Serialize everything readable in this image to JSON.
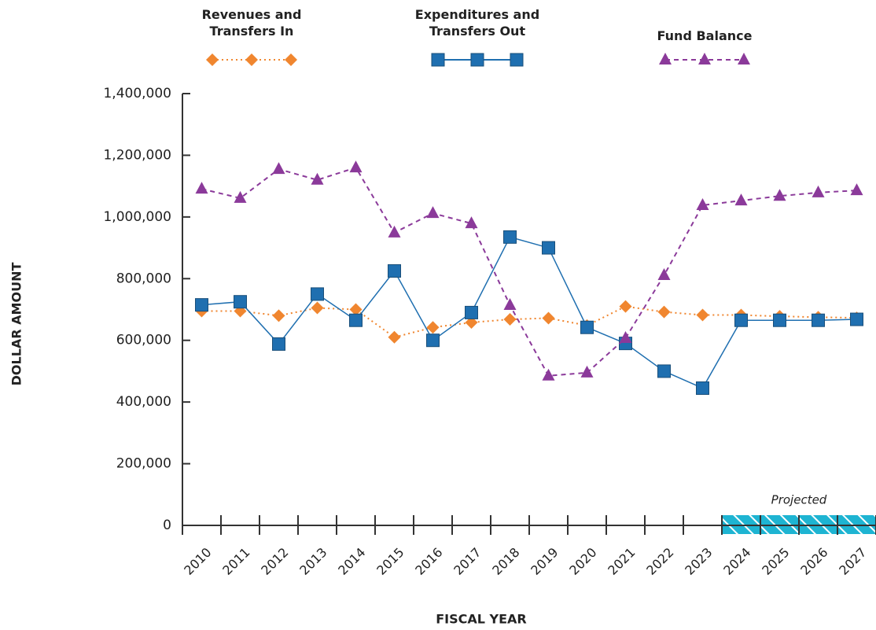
{
  "chart_data": {
    "type": "line",
    "x_label": "FISCAL YEAR",
    "y_label": "DOLLAR AMOUNT",
    "categories": [
      "2010",
      "2011",
      "2012",
      "2013",
      "2014",
      "2015",
      "2016",
      "2017",
      "2018",
      "2019",
      "2020",
      "2021",
      "2022",
      "2023",
      "2024",
      "2025",
      "2026",
      "2027"
    ],
    "series": [
      {
        "name": "Revenues and Transfers In",
        "color": "#f0862f",
        "marker": "diamond",
        "line": "dotted",
        "values": [
          695000,
          695000,
          680000,
          705000,
          700000,
          610000,
          642000,
          658000,
          668000,
          672000,
          648000,
          710000,
          692000,
          682000,
          682000,
          678000,
          675000,
          673000
        ]
      },
      {
        "name": "Expenditures and Transfers Out",
        "color": "#1f6fb0",
        "marker": "square",
        "line": "solid",
        "values": [
          715000,
          725000,
          588000,
          750000,
          665000,
          825000,
          600000,
          690000,
          935000,
          900000,
          642000,
          590000,
          500000,
          445000,
          665000,
          665000,
          665000,
          668000
        ]
      },
      {
        "name": "Fund Balance",
        "color": "#8b3a9a",
        "marker": "triangle",
        "line": "dashed",
        "values": [
          1091000,
          1061000,
          1155000,
          1120000,
          1160000,
          949000,
          1012000,
          979000,
          714000,
          485000,
          495000,
          607000,
          811000,
          1038000,
          1053000,
          1068000,
          1079000,
          1086000
        ]
      }
    ],
    "ylim": [
      0,
      1400000
    ],
    "yticks": [
      0,
      {
        "value": 200000,
        "label": "200,000"
      },
      {
        "value": 400000,
        "label": "400,000"
      },
      {
        "value": 600000,
        "label": "600,000"
      },
      {
        "value": 800000,
        "label": "800,000"
      },
      {
        "value": 1000000,
        "label": "1,000,000"
      },
      {
        "value": 1200000,
        "label": "1,200,000"
      },
      {
        "value": 1400000,
        "label": "1,400,000"
      }
    ],
    "annotations": [
      {
        "text": "Projected",
        "from": "2024"
      }
    ],
    "grid": false
  }
}
